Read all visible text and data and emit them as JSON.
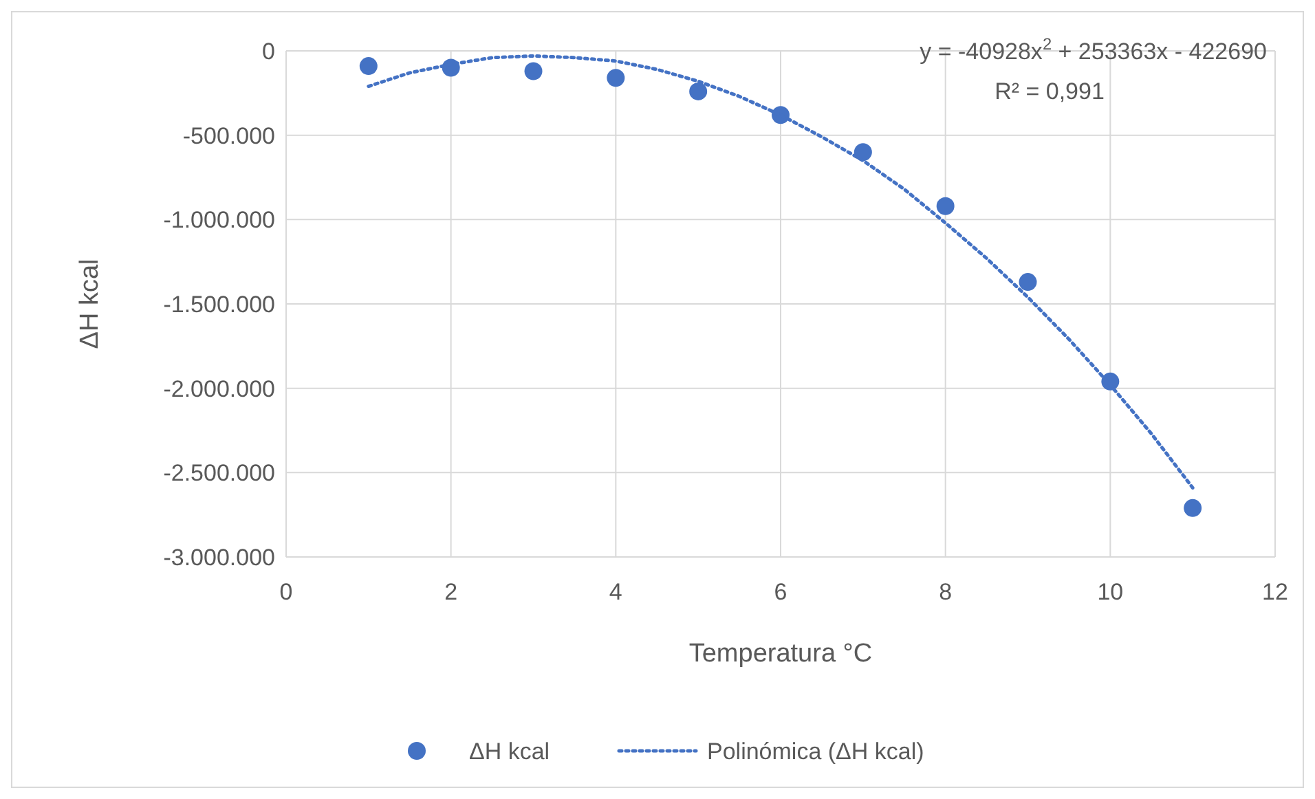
{
  "chart_data": {
    "type": "scatter",
    "xlabel": "Temperatura °C",
    "ylabel": "ΔH kcal",
    "xlim": [
      0,
      12
    ],
    "xticks": [
      0,
      2,
      4,
      6,
      8,
      10,
      12
    ],
    "ylim": [
      -3000000,
      0
    ],
    "yticks": [
      {
        "value": -3000000,
        "label": "-3.000.000"
      },
      {
        "value": -2500000,
        "label": "-2.500.000"
      },
      {
        "value": -2000000,
        "label": "-2.000.000"
      },
      {
        "value": -1500000,
        "label": "-1.500.000"
      },
      {
        "value": -1000000,
        "label": "-1.000.000"
      },
      {
        "value": -500000,
        "label": "-500.000"
      },
      0
    ],
    "grid": true,
    "legend": "bottom",
    "annotations": [
      "y = -40928x$^{2}$ + 253363x - 422690",
      "R² = 0,991"
    ],
    "series": [
      {
        "name": "ΔH kcal",
        "marker": "circle",
        "color": "#4472c4",
        "x": [
          1,
          2,
          3,
          4,
          5,
          6,
          7,
          8,
          9,
          10,
          11
        ],
        "values": [
          -90000,
          -100000,
          -120000,
          -160000,
          -240000,
          -380000,
          -600000,
          -920000,
          -1370000,
          -1960000,
          -2710000
        ]
      },
      {
        "name": "Polinómica (ΔH kcal)",
        "type": "line",
        "line_style": "dotted",
        "color": "#4472c4",
        "x": [
          1,
          1.5,
          2,
          2.5,
          3,
          3.5,
          4,
          4.5,
          5,
          5.5,
          6,
          6.5,
          7,
          7.5,
          8,
          8.5,
          9,
          9.5,
          10,
          10.5,
          11
        ],
        "values": [
          -210000,
          -130000,
          -80000,
          -40000,
          -30000,
          -40000,
          -60000,
          -110000,
          -180000,
          -270000,
          -380000,
          -510000,
          -650000,
          -820000,
          -1020000,
          -1230000,
          -1460000,
          -1710000,
          -1980000,
          -2270000,
          -2590000
        ]
      }
    ]
  }
}
